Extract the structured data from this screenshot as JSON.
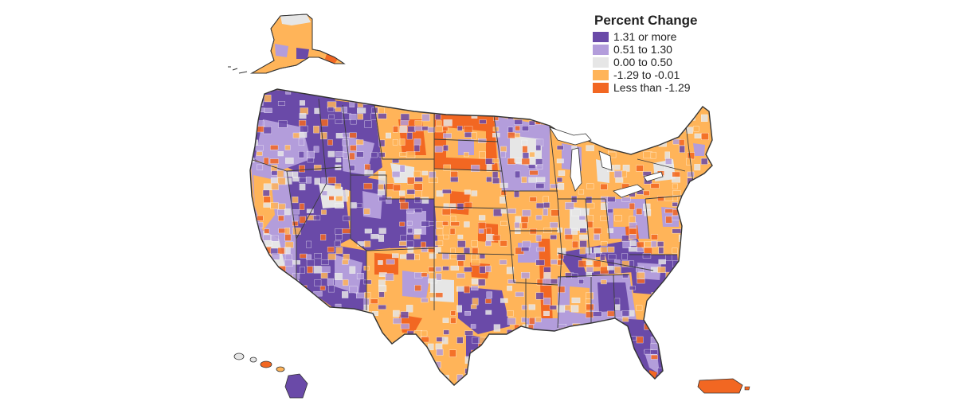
{
  "legend": {
    "title": "Percent Change",
    "items": [
      {
        "label": "1.31 or more",
        "color": "#6a4aa8"
      },
      {
        "label": "0.51 to 1.30",
        "color": "#b39ddb"
      },
      {
        "label": "0.00 to 0.50",
        "color": "#e6e6e6"
      },
      {
        "label": "-1.29 to -0.01",
        "color": "#ffb459"
      },
      {
        "label": "Less than -1.29",
        "color": "#f26722"
      }
    ]
  },
  "map": {
    "regions_shown": [
      "contiguous-us",
      "alaska",
      "hawaii",
      "puerto-rico"
    ],
    "county_boundaries": true,
    "state_boundaries": true,
    "background": "#ffffff",
    "border_color": "#333333"
  }
}
